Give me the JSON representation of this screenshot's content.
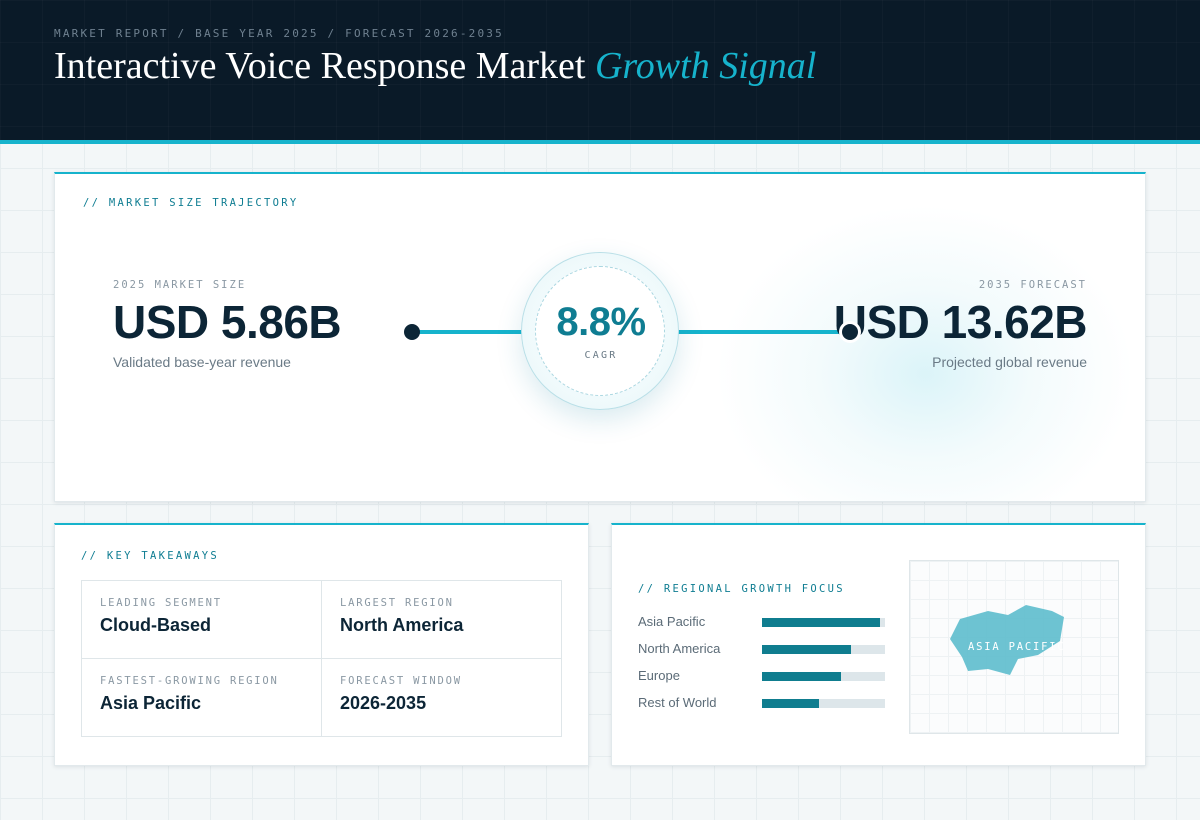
{
  "header": {
    "breadcrumb": "MARKET REPORT / BASE YEAR 2025 / FORECAST 2026-2035",
    "title_main": "Interactive Voice Response Market",
    "title_accent": "Growth Signal"
  },
  "trajectory": {
    "label": "// MARKET SIZE TRAJECTORY",
    "start": {
      "caption": "2025 MARKET SIZE",
      "value": "USD 5.86B",
      "sub": "Validated base-year revenue"
    },
    "cagr": {
      "value": "8.8%",
      "caption": "CAGR"
    },
    "end": {
      "caption": "2035 FORECAST",
      "value": "USD 13.62B",
      "sub": "Projected global revenue"
    }
  },
  "takeaways": {
    "label": "// KEY TAKEAWAYS",
    "items": [
      {
        "caption": "LEADING SEGMENT",
        "value": "Cloud-Based"
      },
      {
        "caption": "LARGEST REGION",
        "value": "North America"
      },
      {
        "caption": "FASTEST-GROWING REGION",
        "value": "Asia Pacific"
      },
      {
        "caption": "FORECAST WINDOW",
        "value": "2026-2035"
      }
    ]
  },
  "regional": {
    "label": "// REGIONAL GROWTH FOCUS",
    "bars": [
      {
        "name": "Asia Pacific",
        "level": 0.96
      },
      {
        "name": "North America",
        "level": 0.72
      },
      {
        "name": "Europe",
        "level": 0.64
      },
      {
        "name": "Rest of World",
        "level": 0.46
      }
    ],
    "map_label": "ASIA PACIFIC"
  },
  "colors": {
    "accent": "#16b3cc",
    "bar_fill": "#0f7d8f",
    "dark": "#0c2536"
  }
}
